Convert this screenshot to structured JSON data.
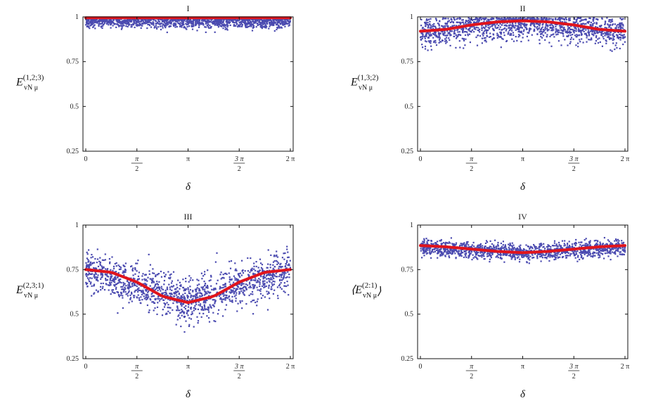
{
  "colors": {
    "scatter": "#4b4bb0",
    "curve": "#e0141c",
    "axis": "#111111"
  },
  "chart_data": [
    {
      "type": "scatter",
      "title": "I",
      "ylabel": {
        "base": "E",
        "sub": "vN μ",
        "sup": "(1,2;3)",
        "paren": false
      },
      "xlabel": "δ",
      "xlim": [
        0,
        6.2832
      ],
      "ylim": [
        0.25,
        1.0
      ],
      "yticks": [
        "0.25",
        "0.5",
        "0.75",
        "1"
      ],
      "ytick_values": [
        0.25,
        0.5,
        0.75,
        1.0
      ],
      "xticks": [
        {
          "label": "0",
          "value": 0
        },
        {
          "label": "π/2",
          "num": "π",
          "den": "2",
          "value": 1.5708
        },
        {
          "label": "π",
          "value": 3.1416
        },
        {
          "label": "3π/2",
          "num": "3 π",
          "den": "2",
          "value": 4.7124
        },
        {
          "label": "2 π",
          "value": 6.2832
        }
      ],
      "series": [
        {
          "name": "samples",
          "kind": "scatter",
          "mean_x": [
            0,
            1.5708,
            3.1416,
            4.7124,
            6.2832
          ],
          "mean_y": [
            0.975,
            0.975,
            0.975,
            0.975,
            0.975
          ],
          "spread": 0.018
        },
        {
          "name": "average",
          "kind": "line",
          "x": [
            0,
            1.5708,
            3.1416,
            4.7124,
            6.2832
          ],
          "y": [
            0.995,
            0.995,
            0.995,
            0.995,
            0.995
          ]
        }
      ]
    },
    {
      "type": "scatter",
      "title": "II",
      "ylabel": {
        "base": "E",
        "sub": "vN μ",
        "sup": "(1,3;2)",
        "paren": false
      },
      "xlabel": "δ",
      "xlim": [
        0,
        6.2832
      ],
      "ylim": [
        0.25,
        1.0
      ],
      "yticks": [
        "0.25",
        "0.5",
        "0.75",
        "1"
      ],
      "ytick_values": [
        0.25,
        0.5,
        0.75,
        1.0
      ],
      "xticks": [
        {
          "label": "0",
          "value": 0
        },
        {
          "label": "π/2",
          "num": "π",
          "den": "2",
          "value": 1.5708
        },
        {
          "label": "π",
          "value": 3.1416
        },
        {
          "label": "3π/2",
          "num": "3 π",
          "den": "2",
          "value": 4.7124
        },
        {
          "label": "2 π",
          "value": 6.2832
        }
      ],
      "series": [
        {
          "name": "samples",
          "kind": "scatter",
          "mean_x": [
            0,
            1.5708,
            3.1416,
            4.7124,
            6.2832
          ],
          "mean_y": [
            0.905,
            0.945,
            0.965,
            0.945,
            0.905
          ],
          "spread": 0.04
        },
        {
          "name": "average",
          "kind": "line",
          "x": [
            0,
            0.785,
            1.5708,
            2.356,
            3.1416,
            3.927,
            4.7124,
            5.498,
            6.2832
          ],
          "y": [
            0.92,
            0.93,
            0.955,
            0.972,
            0.978,
            0.972,
            0.955,
            0.93,
            0.92
          ]
        }
      ]
    },
    {
      "type": "scatter",
      "title": "III",
      "ylabel": {
        "base": "E",
        "sub": "vN μ",
        "sup": "(2,3;1)",
        "paren": false
      },
      "xlabel": "δ",
      "xlim": [
        0,
        6.2832
      ],
      "ylim": [
        0.25,
        1.0
      ],
      "yticks": [
        "0.25",
        "0.5",
        "0.75",
        "1"
      ],
      "ytick_values": [
        0.25,
        0.5,
        0.75,
        1.0
      ],
      "xticks": [
        {
          "label": "0",
          "value": 0
        },
        {
          "label": "π/2",
          "num": "π",
          "den": "2",
          "value": 1.5708
        },
        {
          "label": "π",
          "value": 3.1416
        },
        {
          "label": "3π/2",
          "num": "3 π",
          "den": "2",
          "value": 4.7124
        },
        {
          "label": "2 π",
          "value": 6.2832
        }
      ],
      "series": [
        {
          "name": "samples",
          "kind": "scatter",
          "mean_x": [
            0,
            1.5708,
            3.1416,
            4.7124,
            6.2832
          ],
          "mean_y": [
            0.75,
            0.66,
            0.56,
            0.66,
            0.75
          ],
          "spread": 0.06
        },
        {
          "name": "average",
          "kind": "line",
          "x": [
            0,
            0.785,
            1.5708,
            2.356,
            3.1416,
            3.927,
            4.7124,
            5.498,
            6.2832
          ],
          "y": [
            0.75,
            0.735,
            0.68,
            0.6,
            0.565,
            0.6,
            0.68,
            0.735,
            0.75
          ]
        }
      ]
    },
    {
      "type": "scatter",
      "title": "IV",
      "ylabel": {
        "base": "E",
        "sub": "vN μ",
        "sup": "(2:1)",
        "paren": true
      },
      "xlabel": "δ",
      "xlim": [
        0,
        6.2832
      ],
      "ylim": [
        0.25,
        1.0
      ],
      "yticks": [
        "0.25",
        "0.5",
        "0.75",
        "1"
      ],
      "ytick_values": [
        0.25,
        0.5,
        0.75,
        1.0
      ],
      "xticks": [
        {
          "label": "0",
          "value": 0
        },
        {
          "label": "π/2",
          "num": "π",
          "den": "2",
          "value": 1.5708
        },
        {
          "label": "π",
          "value": 3.1416
        },
        {
          "label": "3π/2",
          "num": "3 π",
          "den": "2",
          "value": 4.7124
        },
        {
          "label": "2 π",
          "value": 6.2832
        }
      ],
      "series": [
        {
          "name": "samples",
          "kind": "scatter",
          "mean_x": [
            0,
            1.5708,
            3.1416,
            4.7124,
            6.2832
          ],
          "mean_y": [
            0.875,
            0.86,
            0.845,
            0.86,
            0.875
          ],
          "spread": 0.022
        },
        {
          "name": "average",
          "kind": "line",
          "x": [
            0,
            0.785,
            1.5708,
            2.356,
            3.1416,
            3.927,
            4.7124,
            5.498,
            6.2832
          ],
          "y": [
            0.885,
            0.878,
            0.865,
            0.852,
            0.845,
            0.852,
            0.865,
            0.878,
            0.885
          ]
        }
      ]
    }
  ]
}
